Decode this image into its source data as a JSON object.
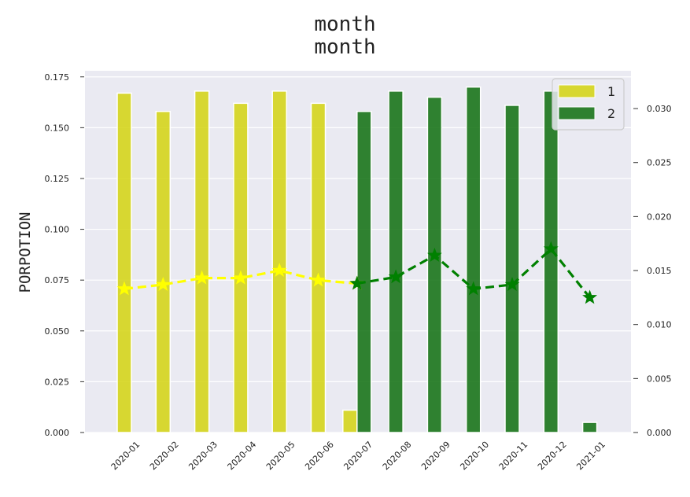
{
  "chart_data": {
    "type": "bar",
    "title": "month",
    "subtitle": "month",
    "xlabel": "",
    "ylabel": "PORPOTION",
    "categories": [
      "2020-01",
      "2020-02",
      "2020-03",
      "2020-04",
      "2020-05",
      "2020-06",
      "2020-07",
      "2020-08",
      "2020-09",
      "2020-10",
      "2020-11",
      "2020-12",
      "2021-01"
    ],
    "series": [
      {
        "name": "1",
        "color": "#d4d30f",
        "values": [
          0.167,
          0.158,
          0.168,
          0.162,
          0.168,
          0.162,
          0.011,
          null,
          null,
          null,
          null,
          null,
          null
        ]
      },
      {
        "name": "2",
        "color": "#0e6e0e",
        "values": [
          null,
          null,
          null,
          null,
          null,
          null,
          0.158,
          0.168,
          0.165,
          0.17,
          0.161,
          0.168,
          0.005
        ]
      }
    ],
    "line_series": [
      {
        "color": "#ffff00",
        "marker": "star",
        "linestyle": "dashed",
        "values": [
          0.0133,
          0.0137,
          0.0143,
          0.0143,
          0.015,
          0.0141,
          0.0138,
          null,
          null,
          null,
          null,
          null,
          null
        ]
      },
      {
        "color": "#008000",
        "marker": "star",
        "linestyle": "dashed",
        "values": [
          null,
          null,
          null,
          null,
          null,
          null,
          0.0138,
          0.0144,
          0.0164,
          0.0133,
          0.0137,
          0.017,
          0.0125
        ]
      }
    ],
    "ylim": [
      0,
      0.178
    ],
    "y2lim": [
      0,
      0.0335
    ],
    "y_ticks": [
      "0.000",
      "0.025",
      "0.050",
      "0.075",
      "0.100",
      "0.125",
      "0.150",
      "0.175"
    ],
    "y2_ticks": [
      "0.000",
      "0.005",
      "0.010",
      "0.015",
      "0.020",
      "0.025",
      "0.030"
    ],
    "grid": true,
    "legend_position": "top-right",
    "background": "#eaeaf2"
  }
}
